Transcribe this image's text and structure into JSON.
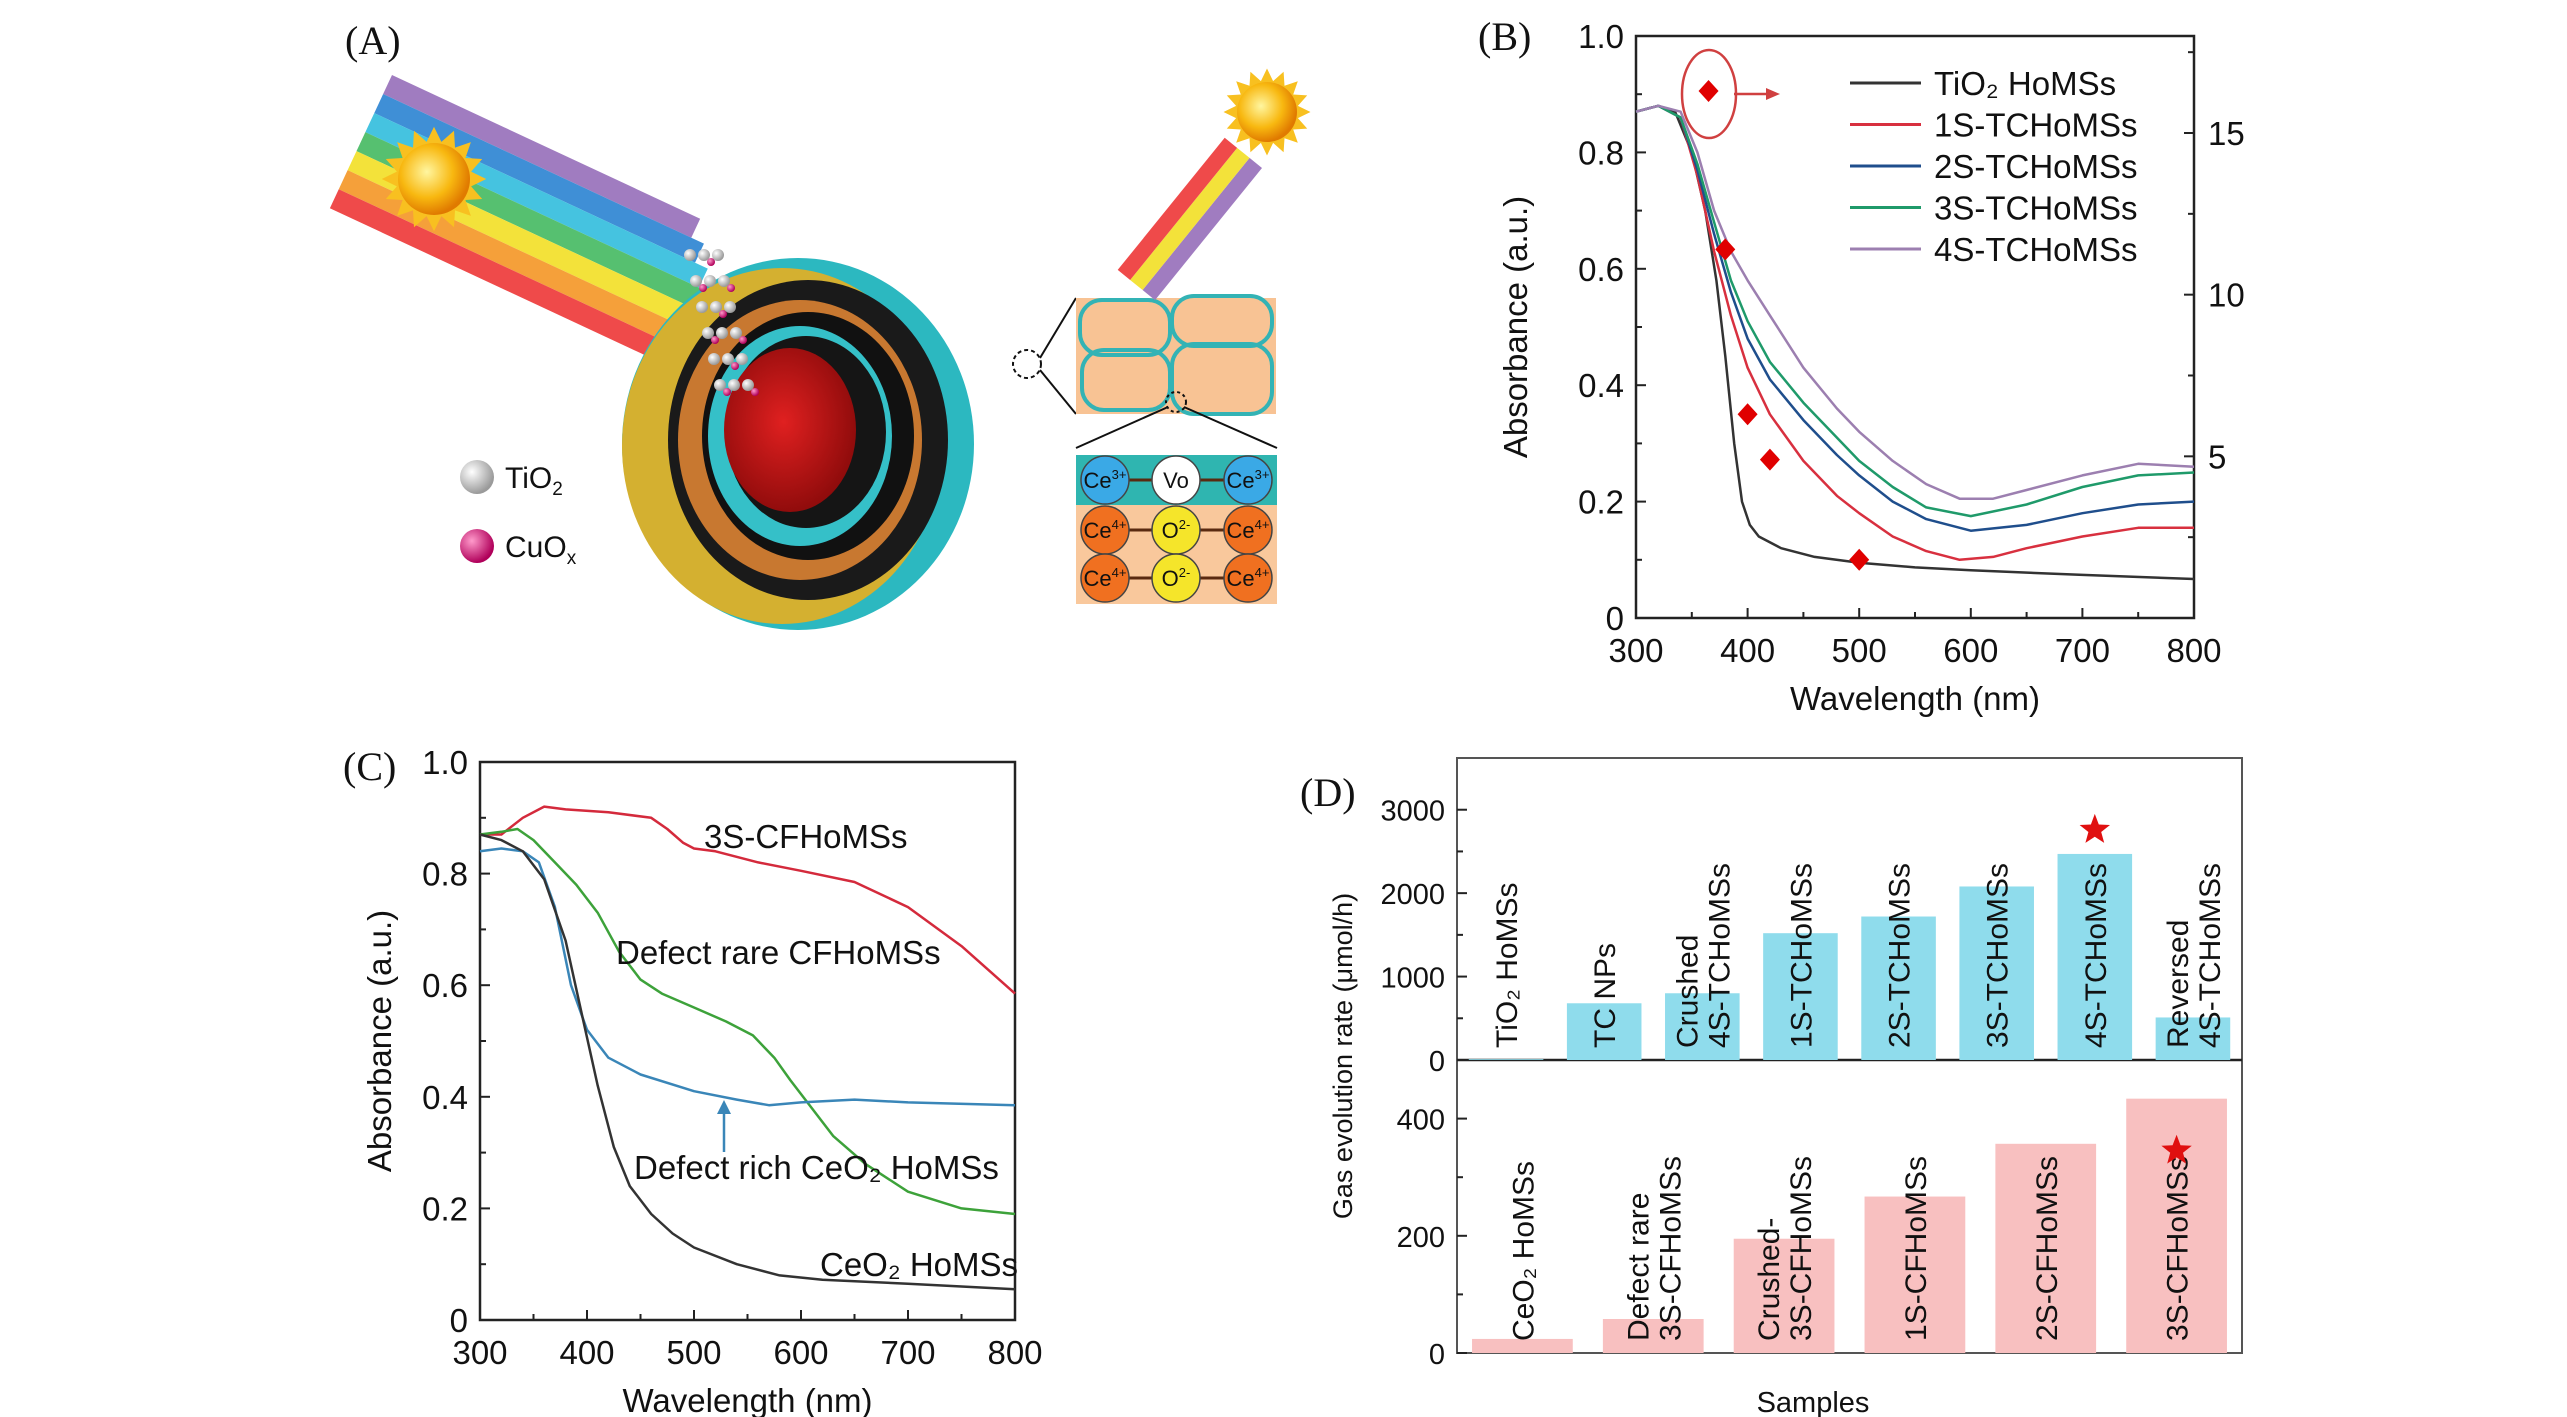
{
  "panel_labels": {
    "a": "(A)",
    "b": "(B)",
    "c": "(C)",
    "d": "(D)"
  },
  "panel_a": {
    "legend": [
      {
        "base": "TiO",
        "sub": "2",
        "color": "#ffffff"
      },
      {
        "base": "CuO",
        "sub": "x",
        "color": "#e8157c"
      }
    ],
    "lattice_rows": [
      [
        {
          "base": "Ce",
          "sup": "3+",
          "color": "#3aa9e6"
        },
        {
          "base": "Vo",
          "sup": "",
          "color": "#ffffff"
        },
        {
          "base": "Ce",
          "sup": "3+",
          "color": "#3aa9e6"
        }
      ],
      [
        {
          "base": "Ce",
          "sup": "4+",
          "color": "#f07020"
        },
        {
          "base": "O",
          "sup": "2-",
          "color": "#f5e52a"
        },
        {
          "base": "Ce",
          "sup": "4+",
          "color": "#f07020"
        }
      ],
      [
        {
          "base": "Ce",
          "sup": "4+",
          "color": "#f07020"
        },
        {
          "base": "O",
          "sup": "2-",
          "color": "#f5e52a"
        },
        {
          "base": "Ce",
          "sup": "4+",
          "color": "#f07020"
        }
      ]
    ],
    "beam_colors": [
      "#a07cc0",
      "#3f8fd6",
      "#45c3e0",
      "#56c070",
      "#f3e23a",
      "#f5a03a",
      "#ef4a4a"
    ]
  },
  "chart_data": [
    {
      "panel": "B",
      "type": "line",
      "xlabel": "Wavelength (nm)",
      "ylabel": "Absorbance (a.u.)",
      "xlim": [
        300,
        800
      ],
      "ylim": [
        0,
        1.0
      ],
      "xticks": [
        "300",
        "400",
        "500",
        "600",
        "700",
        "800"
      ],
      "yticks": [
        "0",
        "0.2",
        "0.4",
        "0.6",
        "0.8",
        "1.0"
      ],
      "y2lim": [
        0,
        18
      ],
      "y2ticks": [
        "5",
        "10",
        "15"
      ],
      "legend_placement": "top-right",
      "series": [
        {
          "name": "TiO₂ HoMSs",
          "color": "#333333",
          "x": [
            300,
            320,
            335,
            350,
            362,
            372,
            380,
            388,
            395,
            402,
            410,
            430,
            460,
            500,
            550,
            600,
            700,
            800
          ],
          "y": [
            0.87,
            0.88,
            0.87,
            0.8,
            0.7,
            0.58,
            0.45,
            0.3,
            0.2,
            0.16,
            0.14,
            0.12,
            0.105,
            0.095,
            0.087,
            0.082,
            0.074,
            0.067
          ]
        },
        {
          "name": "1S-TCHoMSs",
          "color": "#d8303f",
          "x": [
            300,
            320,
            340,
            355,
            370,
            385,
            400,
            420,
            450,
            480,
            500,
            530,
            560,
            590,
            620,
            650,
            700,
            750,
            800
          ],
          "y": [
            0.87,
            0.88,
            0.86,
            0.76,
            0.63,
            0.52,
            0.43,
            0.35,
            0.27,
            0.21,
            0.18,
            0.14,
            0.115,
            0.1,
            0.105,
            0.12,
            0.14,
            0.155,
            0.155
          ]
        },
        {
          "name": "2S-TCHoMSs",
          "color": "#1f4e8c",
          "x": [
            300,
            320,
            340,
            355,
            370,
            385,
            400,
            420,
            450,
            480,
            500,
            530,
            560,
            600,
            650,
            700,
            750,
            800
          ],
          "y": [
            0.87,
            0.88,
            0.86,
            0.77,
            0.66,
            0.56,
            0.48,
            0.41,
            0.34,
            0.28,
            0.245,
            0.2,
            0.17,
            0.15,
            0.16,
            0.18,
            0.195,
            0.2
          ]
        },
        {
          "name": "3S-TCHoMSs",
          "color": "#1f9a6a",
          "x": [
            300,
            320,
            340,
            355,
            370,
            385,
            400,
            420,
            450,
            480,
            500,
            530,
            560,
            600,
            650,
            700,
            750,
            800
          ],
          "y": [
            0.87,
            0.88,
            0.86,
            0.78,
            0.68,
            0.58,
            0.51,
            0.44,
            0.37,
            0.31,
            0.27,
            0.225,
            0.19,
            0.175,
            0.195,
            0.225,
            0.245,
            0.25
          ]
        },
        {
          "name": "4S-TCHoMSs",
          "color": "#9c7fb0",
          "x": [
            300,
            320,
            340,
            355,
            370,
            385,
            400,
            420,
            450,
            480,
            500,
            530,
            560,
            590,
            620,
            650,
            700,
            750,
            800
          ],
          "y": [
            0.87,
            0.88,
            0.87,
            0.8,
            0.7,
            0.63,
            0.58,
            0.52,
            0.43,
            0.36,
            0.32,
            0.27,
            0.23,
            0.205,
            0.205,
            0.22,
            0.245,
            0.265,
            0.26
          ]
        }
      ],
      "secondary_series": {
        "axis": "right",
        "marker": "diamond",
        "color": "#e00000",
        "x": [
          365,
          380,
          400,
          420,
          500
        ],
        "y": [
          16.3,
          11.4,
          6.3,
          4.9,
          1.8
        ]
      }
    },
    {
      "panel": "C",
      "type": "line",
      "xlabel": "Wavelength (nm)",
      "ylabel": "Absorbance (a.u.)",
      "xlim": [
        300,
        800
      ],
      "ylim": [
        0,
        1.0
      ],
      "xticks": [
        "300",
        "400",
        "500",
        "600",
        "700",
        "800"
      ],
      "yticks": [
        "0",
        "0.2",
        "0.4",
        "0.6",
        "0.8",
        "1.0"
      ],
      "series": [
        {
          "name": "3S-CFHoMSs",
          "color": "#d42a3c",
          "x": [
            300,
            320,
            340,
            360,
            380,
            420,
            460,
            475,
            490,
            500,
            520,
            560,
            600,
            650,
            700,
            750,
            800
          ],
          "y": [
            0.87,
            0.87,
            0.9,
            0.92,
            0.915,
            0.91,
            0.9,
            0.88,
            0.855,
            0.845,
            0.84,
            0.82,
            0.805,
            0.785,
            0.74,
            0.67,
            0.585
          ]
        },
        {
          "name": "Defect rare CFHoMSs",
          "color": "#3da23a",
          "x": [
            300,
            320,
            335,
            350,
            370,
            390,
            410,
            430,
            450,
            470,
            500,
            530,
            555,
            575,
            590,
            610,
            630,
            660,
            700,
            750,
            800
          ],
          "y": [
            0.87,
            0.875,
            0.88,
            0.86,
            0.82,
            0.78,
            0.73,
            0.66,
            0.61,
            0.585,
            0.56,
            0.535,
            0.51,
            0.47,
            0.43,
            0.38,
            0.33,
            0.28,
            0.23,
            0.2,
            0.19
          ]
        },
        {
          "name": "Defect rich CeO₂ HoMSs",
          "color": "#3a86b8",
          "x": [
            300,
            320,
            340,
            355,
            370,
            385,
            400,
            420,
            450,
            500,
            540,
            570,
            600,
            650,
            700,
            800
          ],
          "y": [
            0.84,
            0.845,
            0.84,
            0.82,
            0.74,
            0.6,
            0.52,
            0.47,
            0.44,
            0.41,
            0.395,
            0.385,
            0.39,
            0.395,
            0.39,
            0.385
          ]
        },
        {
          "name": "CeO₂ HoMSs",
          "color": "#333333",
          "x": [
            300,
            320,
            340,
            360,
            380,
            395,
            410,
            425,
            440,
            460,
            480,
            500,
            540,
            580,
            620,
            700,
            800
          ],
          "y": [
            0.87,
            0.86,
            0.84,
            0.79,
            0.68,
            0.55,
            0.42,
            0.31,
            0.24,
            0.19,
            0.155,
            0.13,
            0.1,
            0.08,
            0.072,
            0.065,
            0.055
          ]
        }
      ],
      "annotation_arrow": {
        "target_series": "Defect rich CeO₂ HoMSs",
        "color": "#3a86b8"
      }
    },
    {
      "panel": "D",
      "type": "bar",
      "ylabel": "Gas evolution rate (μmol/h)",
      "xlabel": "Samples",
      "panels": [
        {
          "color": "#8fdcec",
          "ylim": [
            0,
            3620
          ],
          "yticks": [
            "0",
            "1000",
            "2000",
            "3000"
          ],
          "categories": [
            [
              "TiO₂ HoMSs"
            ],
            [
              "TC NPs"
            ],
            [
              "Crushed",
              "4S-TCHoMSs"
            ],
            [
              "1S-TCHoMSs"
            ],
            [
              "2S-TCHoMSs"
            ],
            [
              "3S-TCHoMSs"
            ],
            [
              "4S-TCHoMSs"
            ],
            [
              "Reversed",
              "4S-TCHoMSs"
            ]
          ],
          "values": [
            10,
            680,
            800,
            1520,
            1720,
            2080,
            2470,
            510
          ],
          "star_on": "4S-TCHoMSs"
        },
        {
          "color": "#f8c0c0",
          "ylim": [
            0,
            500
          ],
          "yticks": [
            "0",
            "200",
            "400"
          ],
          "categories": [
            [
              "CeO₂ HoMSs"
            ],
            [
              "Defect rare",
              "3S-CFHoMSs"
            ],
            [
              "Crushed-",
              "3S-CFHoMSs"
            ],
            [
              "1S-CFHoMSs"
            ],
            [
              "2S-CFHoMSs"
            ],
            [
              "3S-CFHoMSs"
            ]
          ],
          "values": [
            24,
            58,
            195,
            267,
            357,
            434
          ],
          "star_on": "3S-CFHoMSs"
        }
      ],
      "star_color": "#e01010"
    }
  ]
}
